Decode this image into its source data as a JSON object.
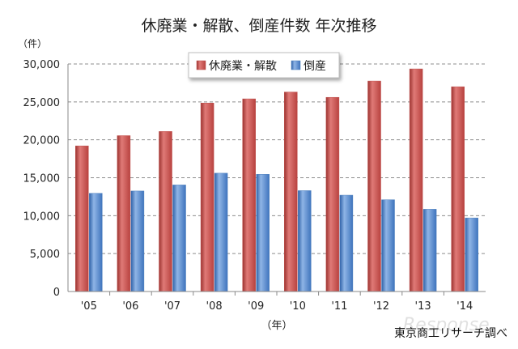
{
  "chart_data": {
    "type": "bar",
    "title": "休廃業・解散、倒産件数 年次推移",
    "ylabel": "（件）",
    "xlabel": "（年）",
    "source": "東京商工リサーチ調べ",
    "categories": [
      "'05",
      "'06",
      "'07",
      "'08",
      "'09",
      "'10",
      "'11",
      "'12",
      "'13",
      "'14"
    ],
    "series": [
      {
        "name": "休廃業・解散",
        "color": "#c0504d",
        "values": [
          19200,
          20550,
          21100,
          24850,
          25400,
          26300,
          25600,
          27750,
          29350,
          27000
        ]
      },
      {
        "name": "倒産",
        "color": "#4f81bd",
        "values": [
          12950,
          13250,
          14050,
          15600,
          15450,
          13300,
          12700,
          12100,
          10850,
          9700
        ]
      }
    ],
    "ylim": [
      0,
      30000
    ],
    "yticks": [
      "0",
      "5,000",
      "10,000",
      "15,000",
      "20,000",
      "25,000",
      "30,000"
    ],
    "grid": true,
    "legend_position": "top-right"
  },
  "watermark": "Response"
}
